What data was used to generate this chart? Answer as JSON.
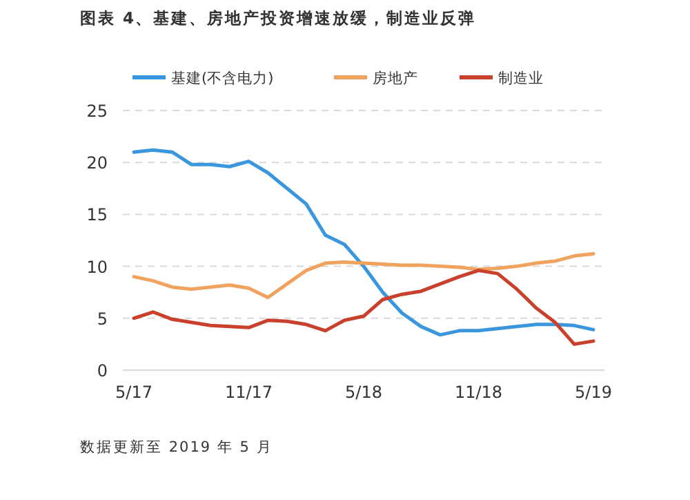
{
  "chart_data": {
    "type": "line",
    "title": "图表 4、基建、房地产投资增速放缓，制造业反弹",
    "categories": [
      "5/17",
      null,
      null,
      null,
      null,
      null,
      "11/17",
      null,
      null,
      null,
      null,
      null,
      "5/18",
      null,
      null,
      null,
      null,
      null,
      "11/18",
      null,
      null,
      null,
      null,
      null,
      "5/19"
    ],
    "series": [
      {
        "name": "基建(不含电力)",
        "color": "#3a96dd",
        "values": [
          21.0,
          21.2,
          21.0,
          19.8,
          19.8,
          19.6,
          20.1,
          19.0,
          17.5,
          16.0,
          13.0,
          12.1,
          10.0,
          7.5,
          5.5,
          4.2,
          3.4,
          3.8,
          3.8,
          4.0,
          4.2,
          4.4,
          4.4,
          4.3,
          3.9
        ]
      },
      {
        "name": "房地产",
        "color": "#f0a35e",
        "values": [
          9.0,
          8.6,
          8.0,
          7.8,
          8.0,
          8.2,
          7.9,
          7.0,
          8.3,
          9.6,
          10.3,
          10.4,
          10.3,
          10.2,
          10.1,
          10.1,
          10.0,
          9.9,
          9.7,
          9.8,
          10.0,
          10.3,
          10.5,
          11.0,
          11.2
        ]
      },
      {
        "name": "制造业",
        "color": "#c9412d",
        "values": [
          5.0,
          5.6,
          4.9,
          4.6,
          4.3,
          4.2,
          4.1,
          4.8,
          4.7,
          4.4,
          3.8,
          4.8,
          5.2,
          6.8,
          7.3,
          7.6,
          8.3,
          9.0,
          9.6,
          9.3,
          7.8,
          6.0,
          4.6,
          2.5,
          2.8
        ]
      }
    ],
    "ylim": [
      0,
      25
    ],
    "yticks": [
      0,
      5,
      10,
      15,
      20,
      25
    ],
    "grid": "y",
    "legend": "top",
    "annotations": [
      "数据更新至 2019 年 5 月"
    ]
  }
}
